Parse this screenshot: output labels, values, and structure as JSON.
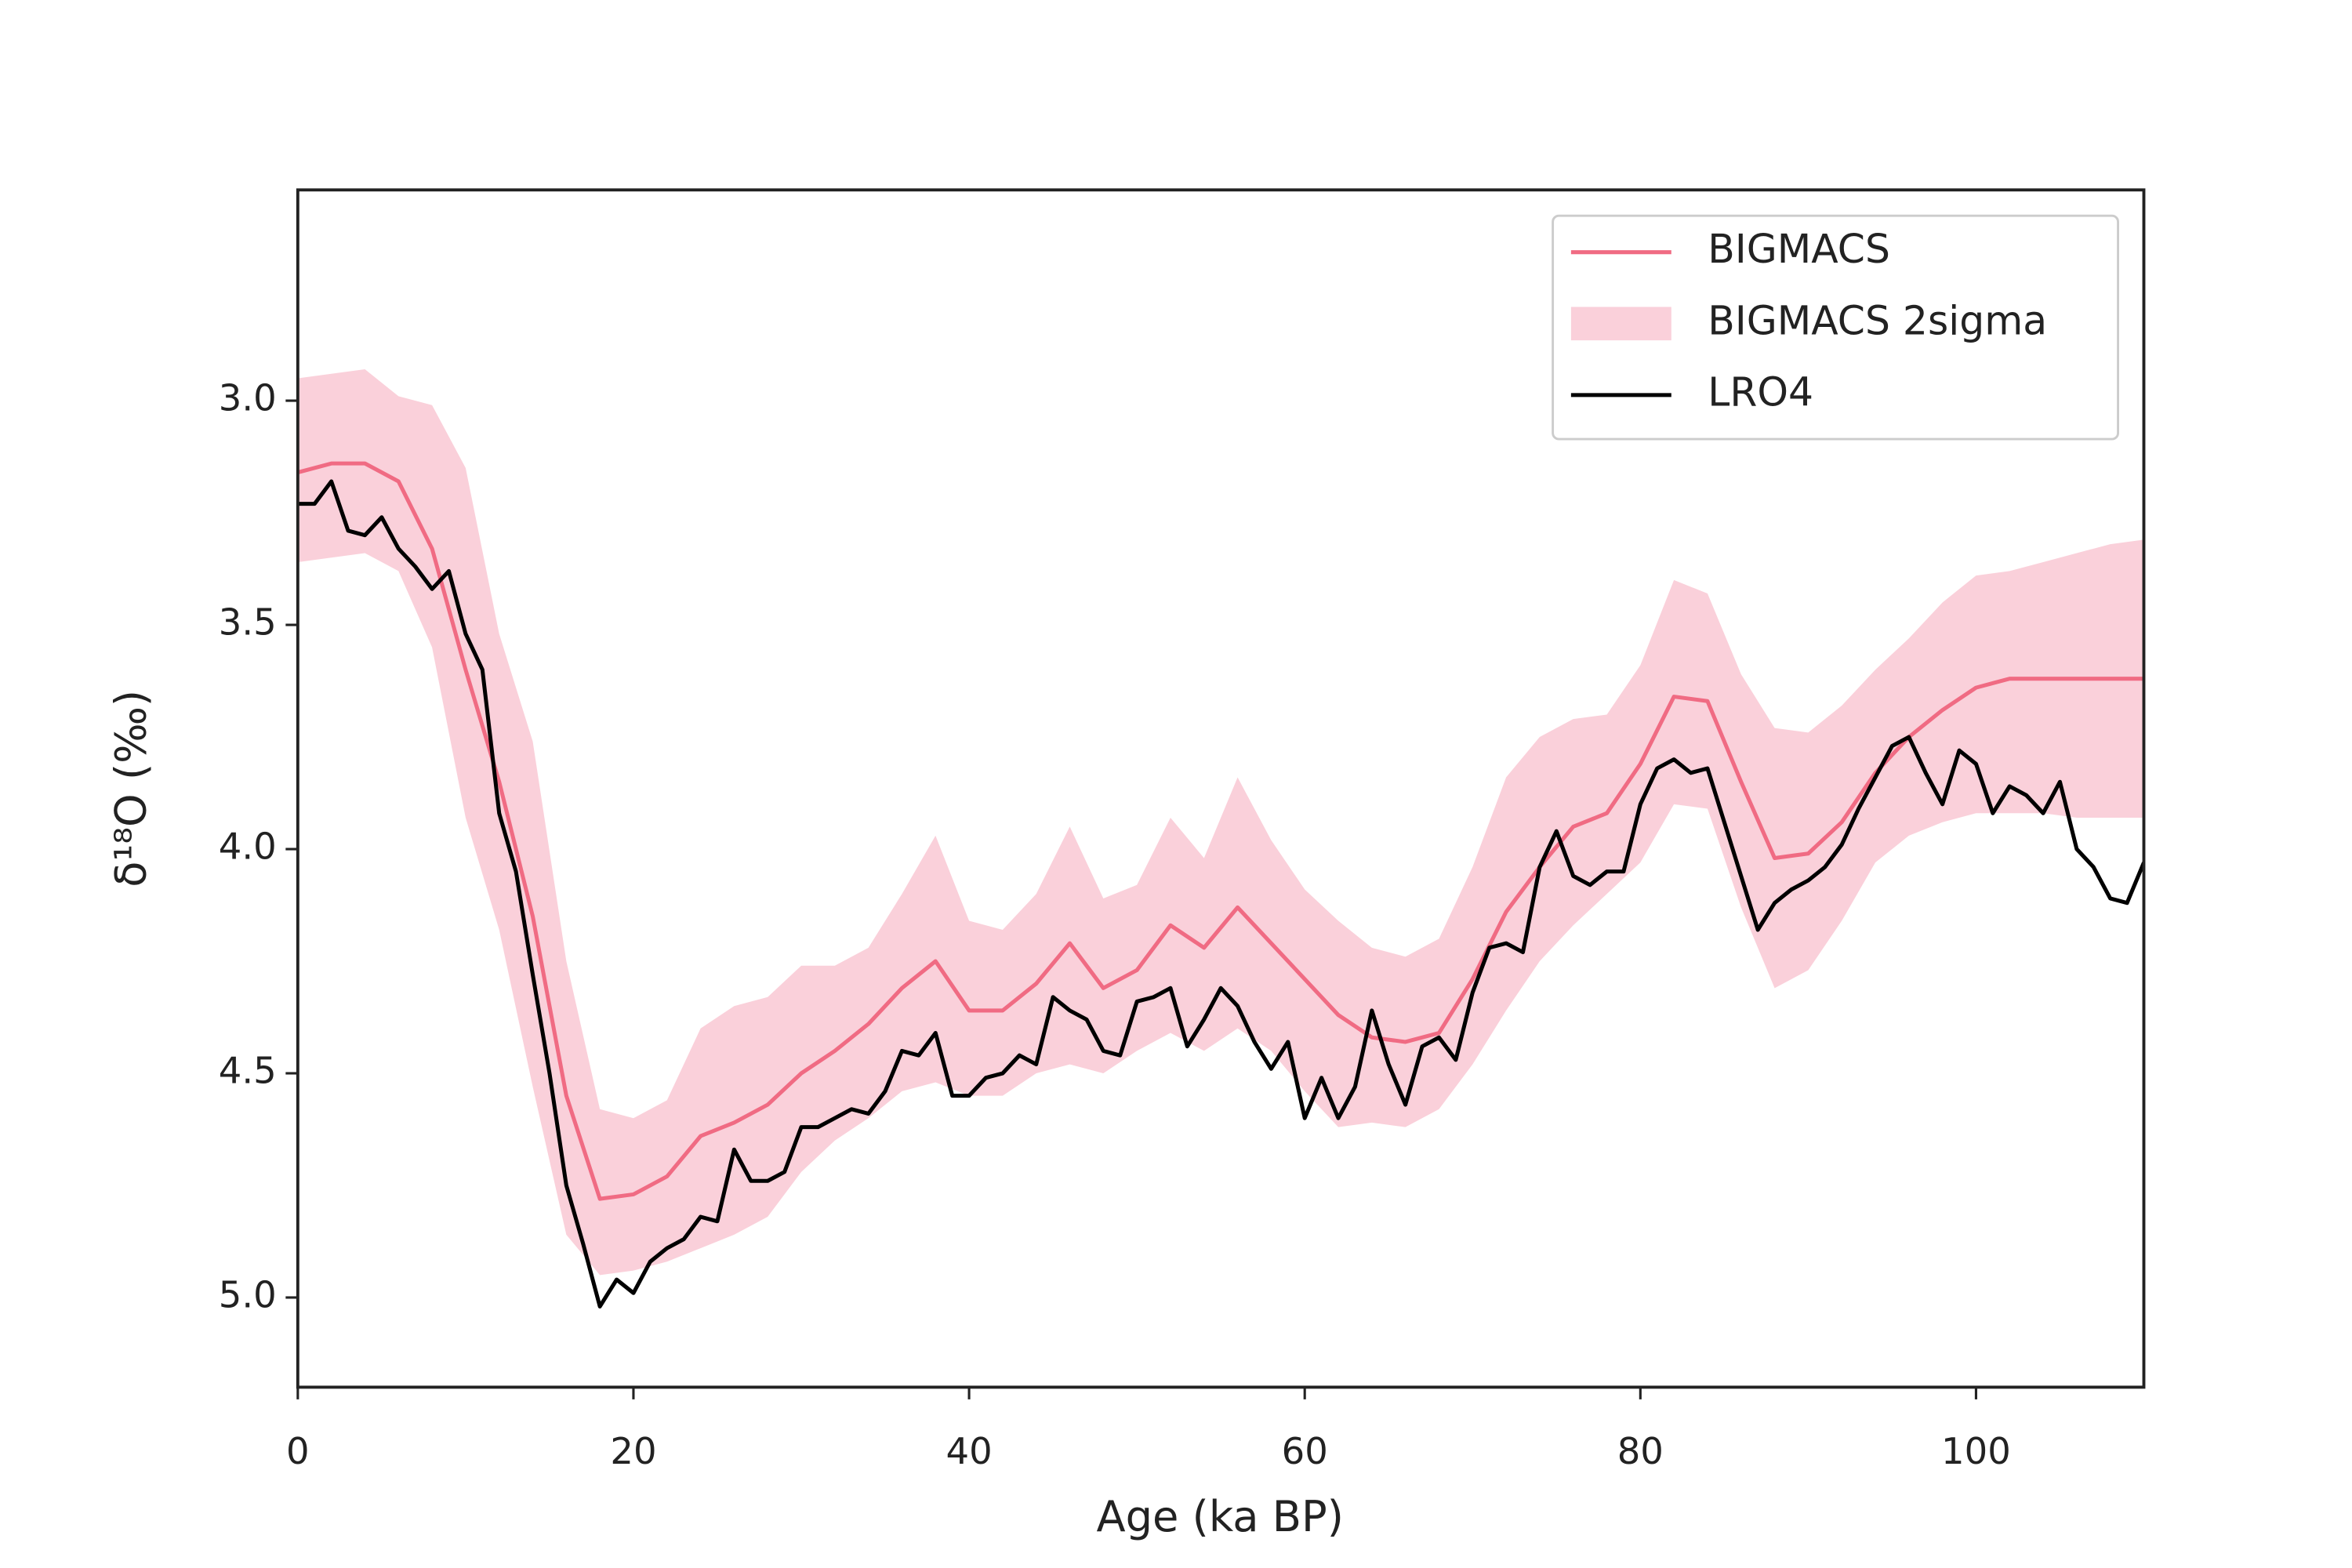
{
  "chart_data": {
    "type": "line",
    "xlabel": "Age (ka BP)",
    "ylabel": "δ¹⁸O (‰)",
    "xlim": [
      0,
      110
    ],
    "ylim": [
      5.2,
      2.53
    ],
    "xticks": [
      0,
      20,
      40,
      60,
      80,
      100
    ],
    "yticks": [
      {
        "value": 3.0,
        "label": "3.0"
      },
      3.5,
      {
        "value": 4.0,
        "label": "4.0"
      },
      4.5,
      {
        "value": 5.0,
        "label": "5.0"
      }
    ],
    "legend": "upper right",
    "series": [
      {
        "name": "BIGMACS",
        "kind": "line",
        "color": "#f06b83",
        "x": [
          0,
          2,
          4,
          6,
          8,
          10,
          12,
          14,
          16,
          18,
          20,
          22,
          24,
          26,
          28,
          30,
          32,
          34,
          36,
          38,
          40,
          42,
          44,
          46,
          48,
          50,
          52,
          54,
          56,
          58,
          60,
          62,
          64,
          66,
          68,
          70,
          72,
          74,
          76,
          78,
          80,
          82,
          84,
          86,
          88,
          90,
          92,
          94,
          96,
          98,
          100,
          102,
          104,
          106,
          108,
          110
        ],
        "values": [
          3.16,
          3.14,
          3.14,
          3.18,
          3.33,
          3.6,
          3.85,
          4.15,
          4.55,
          4.78,
          4.77,
          4.73,
          4.64,
          4.61,
          4.57,
          4.5,
          4.45,
          4.39,
          4.31,
          4.25,
          4.36,
          4.36,
          4.3,
          4.21,
          4.31,
          4.27,
          4.17,
          4.22,
          4.13,
          4.21,
          4.29,
          4.37,
          4.42,
          4.43,
          4.41,
          4.29,
          4.14,
          4.04,
          3.95,
          3.92,
          3.81,
          3.66,
          3.67,
          3.85,
          4.02,
          4.01,
          3.94,
          3.83,
          3.75,
          3.69,
          3.64,
          3.62,
          3.62,
          3.62,
          3.62,
          3.62
        ]
      },
      {
        "name": "BIGMACS 2sigma",
        "kind": "band",
        "color": "#fad0da",
        "x": [
          0,
          2,
          4,
          6,
          8,
          10,
          12,
          14,
          16,
          18,
          20,
          22,
          24,
          26,
          28,
          30,
          32,
          34,
          36,
          38,
          40,
          42,
          44,
          46,
          48,
          50,
          52,
          54,
          56,
          58,
          60,
          62,
          64,
          66,
          68,
          70,
          72,
          74,
          76,
          78,
          80,
          82,
          84,
          86,
          88,
          90,
          92,
          94,
          96,
          98,
          100,
          102,
          104,
          106,
          108,
          110
        ],
        "values": [
          2.95,
          2.94,
          2.93,
          2.99,
          3.01,
          3.15,
          3.52,
          3.76,
          4.25,
          4.58,
          4.6,
          4.56,
          4.4,
          4.35,
          4.33,
          4.26,
          4.26,
          4.22,
          4.1,
          3.97,
          4.16,
          4.18,
          4.1,
          3.95,
          4.11,
          4.08,
          3.93,
          4.02,
          3.84,
          3.98,
          4.09,
          4.16,
          4.22,
          4.24,
          4.2,
          4.04,
          3.84,
          3.75,
          3.71,
          3.7,
          3.59,
          3.4,
          3.43,
          3.61,
          3.73,
          3.74,
          3.68,
          3.6,
          3.53,
          3.45,
          3.39,
          3.38,
          3.36,
          3.34,
          3.32,
          3.31
        ],
        "lower": [
          3.36,
          3.35,
          3.34,
          3.38,
          3.55,
          3.93,
          4.18,
          4.53,
          4.86,
          4.95,
          4.94,
          4.92,
          4.89,
          4.86,
          4.82,
          4.72,
          4.65,
          4.6,
          4.54,
          4.52,
          4.55,
          4.55,
          4.5,
          4.48,
          4.5,
          4.45,
          4.41,
          4.45,
          4.4,
          4.45,
          4.54,
          4.62,
          4.61,
          4.62,
          4.58,
          4.48,
          4.36,
          4.25,
          4.17,
          4.1,
          4.03,
          3.9,
          3.91,
          4.13,
          4.31,
          4.27,
          4.16,
          4.03,
          3.97,
          3.94,
          3.92,
          3.92,
          3.92,
          3.93,
          3.93,
          3.93
        ]
      },
      {
        "name": "LRO4",
        "kind": "line",
        "color": "#000000",
        "x": [
          0,
          1,
          2,
          3,
          4,
          5,
          6,
          7,
          8,
          9,
          10,
          11,
          12,
          13,
          14,
          15,
          16,
          17,
          18,
          19,
          20,
          21,
          22,
          23,
          24,
          25,
          26,
          27,
          28,
          29,
          30,
          31,
          32,
          33,
          34,
          35,
          36,
          37,
          38,
          39,
          40,
          41,
          42,
          43,
          44,
          45,
          46,
          47,
          48,
          49,
          50,
          51,
          52,
          53,
          54,
          55,
          56,
          57,
          58,
          59,
          60,
          61,
          62,
          63,
          64,
          65,
          66,
          67,
          68,
          69,
          70,
          71,
          72,
          73,
          74,
          75,
          76,
          77,
          78,
          79,
          80,
          81,
          82,
          83,
          84,
          85,
          86,
          87,
          88,
          89,
          90,
          91,
          92,
          93,
          94,
          95,
          96,
          97,
          98,
          99,
          100,
          101,
          102,
          103,
          104,
          105,
          106,
          107,
          108,
          109,
          110
        ],
        "values": [
          3.23,
          3.23,
          3.18,
          3.29,
          3.3,
          3.26,
          3.33,
          3.37,
          3.42,
          3.38,
          3.52,
          3.6,
          3.92,
          4.05,
          4.28,
          4.5,
          4.75,
          4.88,
          5.02,
          4.96,
          4.99,
          4.92,
          4.89,
          4.87,
          4.82,
          4.83,
          4.67,
          4.74,
          4.74,
          4.72,
          4.62,
          4.62,
          4.6,
          4.58,
          4.59,
          4.54,
          4.45,
          4.46,
          4.41,
          4.55,
          4.55,
          4.51,
          4.5,
          4.46,
          4.48,
          4.33,
          4.36,
          4.38,
          4.45,
          4.46,
          4.34,
          4.33,
          4.31,
          4.44,
          4.38,
          4.31,
          4.35,
          4.43,
          4.49,
          4.43,
          4.6,
          4.51,
          4.6,
          4.53,
          4.36,
          4.48,
          4.57,
          4.44,
          4.42,
          4.47,
          4.32,
          4.22,
          4.21,
          4.23,
          4.04,
          3.96,
          4.06,
          4.08,
          4.05,
          4.05,
          3.9,
          3.82,
          3.8,
          3.83,
          3.82,
          3.94,
          4.06,
          4.18,
          4.12,
          4.09,
          4.07,
          4.04,
          3.99,
          3.91,
          3.84,
          3.77,
          3.75,
          3.83,
          3.9,
          3.78,
          3.81,
          3.92,
          3.86,
          3.88,
          3.92,
          3.85,
          4.0,
          4.04,
          4.11,
          4.12,
          4.03
        ]
      }
    ]
  }
}
